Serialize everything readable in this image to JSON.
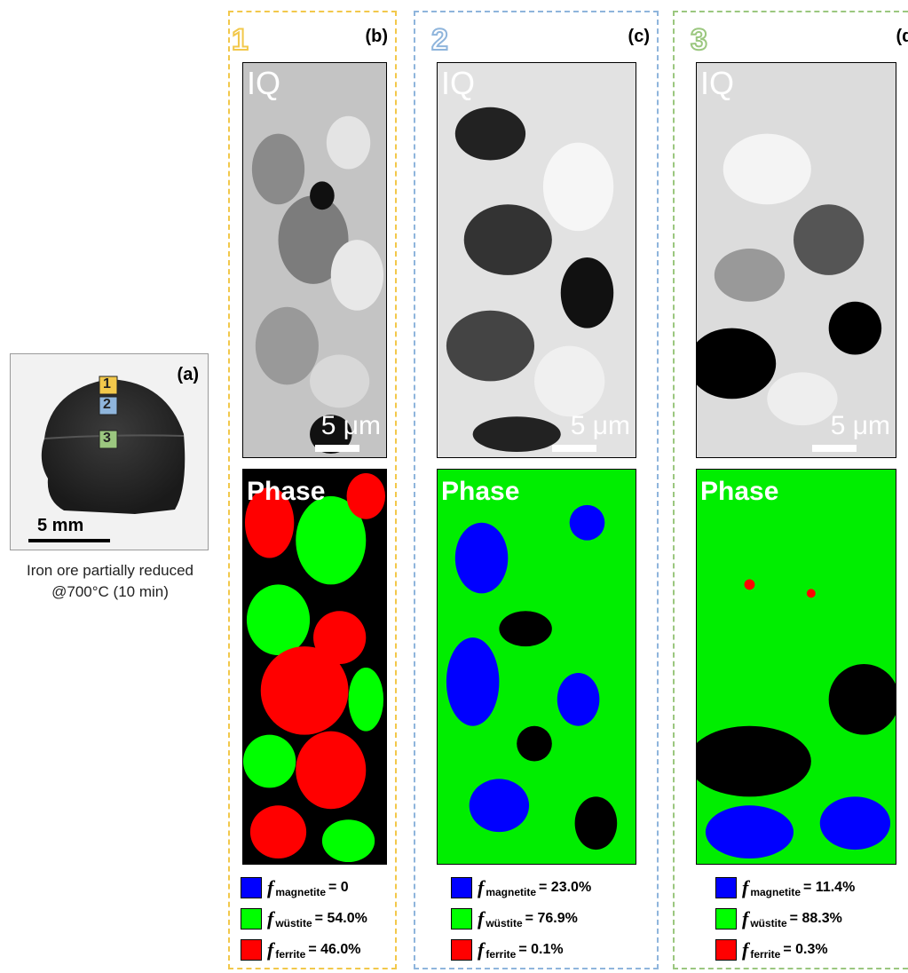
{
  "overview": {
    "label": "(a)",
    "markers": [
      "1",
      "2",
      "3"
    ],
    "scale_bar": "5 mm",
    "caption_line1": "Iron ore partially reduced",
    "caption_line2": "@700°C (10 min)"
  },
  "panels": [
    {
      "number": "1",
      "letter": "(b)",
      "border_color": "#f2c84b",
      "number_color": "#f2c84b",
      "iq_title": "IQ",
      "phase_title": "Phase",
      "scale": "5 μm",
      "legend": [
        {
          "symbol": "f",
          "sub": "magnetite",
          "value": "= 0",
          "color": "#0000ff"
        },
        {
          "symbol": "f",
          "sub": "wüstite",
          "value": "= 54.0%",
          "color": "#00ff00"
        },
        {
          "symbol": "f",
          "sub": "ferrite",
          "value": "= 46.0%",
          "color": "#ff0000"
        }
      ]
    },
    {
      "number": "2",
      "letter": "(c)",
      "border_color": "#8fb5dc",
      "number_color": "#8fb5dc",
      "iq_title": "IQ",
      "phase_title": "Phase",
      "scale": "5 μm",
      "legend": [
        {
          "symbol": "f",
          "sub": "magnetite",
          "value": "= 23.0%",
          "color": "#0000ff"
        },
        {
          "symbol": "f",
          "sub": "wüstite",
          "value": "= 76.9%",
          "color": "#00ff00"
        },
        {
          "symbol": "f",
          "sub": "ferrite",
          "value": "= 0.1%",
          "color": "#ff0000"
        }
      ]
    },
    {
      "number": "3",
      "letter": "(d)",
      "border_color": "#9bc77f",
      "number_color": "#9bc77f",
      "iq_title": "IQ",
      "phase_title": "Phase",
      "scale": "5 μm",
      "legend": [
        {
          "symbol": "f",
          "sub": "magnetite",
          "value": "= 11.4%",
          "color": "#0000ff"
        },
        {
          "symbol": "f",
          "sub": "wüstite",
          "value": "= 88.3%",
          "color": "#00ff00"
        },
        {
          "symbol": "f",
          "sub": "ferrite",
          "value": "= 0.3%",
          "color": "#ff0000"
        }
      ]
    }
  ],
  "colors": {
    "magnetite": "#0000ff",
    "wustite": "#00ff00",
    "ferrite": "#ff0000"
  }
}
